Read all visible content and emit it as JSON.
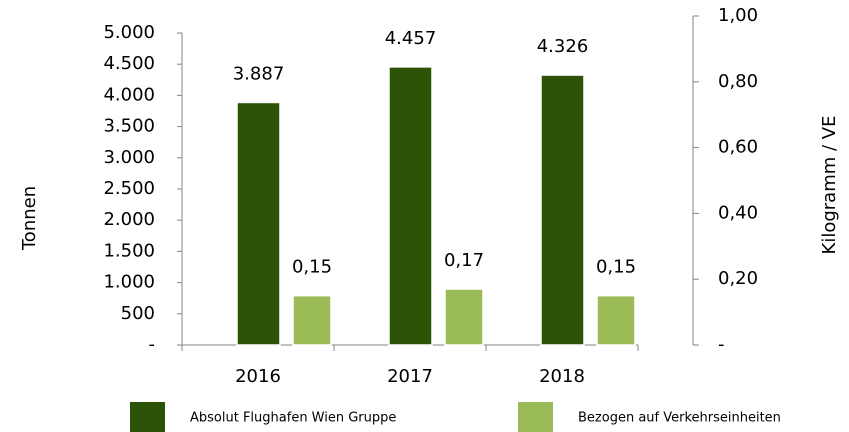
{
  "chart_data": {
    "type": "bar",
    "categories": [
      "2016",
      "2017",
      "2018"
    ],
    "series": [
      {
        "name": "Absolut Flughafen Wien Gruppe",
        "color": "#2d5406",
        "values": [
          3887,
          4457,
          4326
        ],
        "value_labels": [
          "3.887",
          "4.457",
          "4.326"
        ]
      },
      {
        "name": "Bezogen auf Verkehrseinheiten",
        "color": "#9bbb59",
        "axis": "y2",
        "values": [
          0.15,
          0.17,
          0.15
        ],
        "value_labels": [
          "0,15",
          "0,17",
          "0,15"
        ]
      }
    ],
    "ylabel": "Tonnen",
    "y2label": "Kilogramm / VE",
    "ylim": [
      0,
      5000
    ],
    "yticks": [
      {
        "value": 0,
        "label": "-"
      },
      500,
      {
        "value": 1000,
        "label": "1.000"
      },
      {
        "value": 1500,
        "label": "1.500"
      },
      {
        "value": 2000,
        "label": "2.000"
      },
      {
        "value": 2500,
        "label": "2.500"
      },
      {
        "value": 3000,
        "label": "3.000"
      },
      {
        "value": 3500,
        "label": "3.500"
      },
      {
        "value": 4000,
        "label": "4.000"
      },
      {
        "value": 4500,
        "label": "4.500"
      },
      {
        "value": 5000,
        "label": "5.000"
      }
    ],
    "y2lim": [
      0,
      1
    ],
    "y2ticks": [
      {
        "value": 0,
        "label": "-"
      },
      {
        "value": 0.2,
        "label": "0,20"
      },
      {
        "value": 0.4,
        "label": "0,40"
      },
      {
        "value": 0.6,
        "label": "0,60"
      },
      {
        "value": 0.8,
        "label": "0,80"
      },
      {
        "value": 1,
        "label": "1,00"
      }
    ],
    "legend": "bottom"
  }
}
